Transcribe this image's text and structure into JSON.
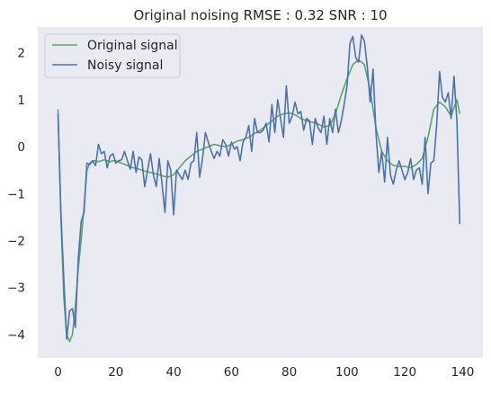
{
  "chart_data": {
    "type": "line",
    "title": "Original noising RMSE : 0.32 SNR : 10",
    "xlabel": "",
    "ylabel": "",
    "xlim": [
      -7,
      147
    ],
    "ylim": [
      -4.5,
      2.55
    ],
    "x_ticks": [
      0,
      20,
      40,
      60,
      80,
      100,
      120,
      140
    ],
    "y_ticks": [
      -4,
      -3,
      -2,
      -1,
      0,
      1,
      2
    ],
    "grid": false,
    "background": "#eaeaf2",
    "legend_position": "top-left",
    "series": [
      {
        "name": "Original signal",
        "color": "#55a868",
        "x": [
          0,
          1,
          2,
          3,
          4,
          5,
          6,
          7,
          8,
          9,
          10,
          11,
          12,
          13,
          14,
          15,
          16,
          17,
          18,
          19,
          20,
          22,
          24,
          26,
          28,
          30,
          32,
          34,
          36,
          38,
          40,
          42,
          44,
          46,
          48,
          50,
          52,
          54,
          56,
          58,
          60,
          62,
          64,
          66,
          68,
          70,
          72,
          74,
          76,
          78,
          80,
          82,
          84,
          86,
          88,
          90,
          92,
          94,
          96,
          98,
          100,
          102,
          104,
          106,
          108,
          110,
          112,
          114,
          116,
          118,
          120,
          122,
          124,
          126,
          128,
          130,
          132,
          134,
          136,
          138,
          139
        ],
        "values": [
          0.8,
          -1.5,
          -3.2,
          -4.0,
          -4.15,
          -4.0,
          -3.4,
          -2.6,
          -2.0,
          -1.3,
          -0.5,
          -0.35,
          -0.3,
          -0.3,
          -0.32,
          -0.3,
          -0.28,
          -0.3,
          -0.32,
          -0.3,
          -0.3,
          -0.35,
          -0.4,
          -0.45,
          -0.48,
          -0.52,
          -0.55,
          -0.58,
          -0.62,
          -0.65,
          -0.6,
          -0.45,
          -0.3,
          -0.2,
          -0.1,
          -0.05,
          0.0,
          0.05,
          0.02,
          0.0,
          0.05,
          0.12,
          0.15,
          0.2,
          0.28,
          0.35,
          0.45,
          0.55,
          0.65,
          0.7,
          0.72,
          0.68,
          0.6,
          0.55,
          0.52,
          0.48,
          0.42,
          0.45,
          0.7,
          1.1,
          1.45,
          1.75,
          1.85,
          1.75,
          1.2,
          0.4,
          -0.1,
          -0.3,
          -0.4,
          -0.42,
          -0.42,
          -0.45,
          -0.38,
          -0.25,
          0.2,
          0.8,
          0.95,
          0.85,
          0.65,
          1.0,
          0.7
        ]
      },
      {
        "name": "Noisy signal",
        "color": "#4c72b0",
        "x": [
          0,
          1,
          2,
          3,
          4,
          5,
          6,
          7,
          8,
          9,
          10,
          11,
          12,
          13,
          14,
          15,
          16,
          17,
          18,
          19,
          20,
          21,
          22,
          23,
          24,
          25,
          26,
          27,
          28,
          29,
          30,
          31,
          32,
          33,
          34,
          35,
          36,
          37,
          38,
          39,
          40,
          41,
          42,
          43,
          44,
          45,
          46,
          47,
          48,
          49,
          50,
          51,
          52,
          53,
          54,
          55,
          56,
          57,
          58,
          59,
          60,
          61,
          62,
          63,
          64,
          65,
          66,
          67,
          68,
          69,
          70,
          71,
          72,
          73,
          74,
          75,
          76,
          77,
          78,
          79,
          80,
          81,
          82,
          83,
          84,
          85,
          86,
          87,
          88,
          89,
          90,
          91,
          92,
          93,
          94,
          95,
          96,
          97,
          98,
          99,
          100,
          101,
          102,
          103,
          104,
          105,
          106,
          107,
          108,
          109,
          110,
          111,
          112,
          113,
          114,
          115,
          116,
          117,
          118,
          119,
          120,
          121,
          122,
          123,
          124,
          125,
          126,
          127,
          128,
          129,
          130,
          131,
          132,
          133,
          134,
          135,
          136,
          137,
          138,
          139
        ],
        "values": [
          0.7,
          -1.4,
          -2.8,
          -4.1,
          -3.5,
          -3.45,
          -3.85,
          -2.4,
          -1.6,
          -1.4,
          -0.35,
          -0.38,
          -0.3,
          -0.4,
          0.05,
          -0.15,
          -0.1,
          -0.45,
          -0.2,
          -0.15,
          -0.35,
          -0.3,
          -0.28,
          -0.1,
          -0.3,
          -0.48,
          -0.1,
          -0.55,
          -0.22,
          -0.28,
          -0.85,
          -0.5,
          -0.15,
          -0.6,
          -0.85,
          -0.25,
          -0.8,
          -1.4,
          -0.3,
          -0.5,
          -1.45,
          -0.5,
          -0.6,
          -0.7,
          -0.5,
          -0.7,
          -0.35,
          -0.3,
          0.3,
          -0.65,
          -0.25,
          0.3,
          0.1,
          -0.1,
          -0.25,
          -0.1,
          -0.2,
          0.15,
          0.05,
          -0.2,
          0.1,
          -0.05,
          0.0,
          -0.3,
          0.1,
          0.2,
          0.45,
          -0.1,
          0.6,
          0.3,
          0.3,
          0.35,
          0.5,
          0.1,
          0.9,
          0.3,
          1.0,
          0.6,
          0.2,
          1.3,
          0.5,
          0.65,
          0.95,
          0.7,
          0.75,
          0.35,
          0.6,
          0.55,
          0.05,
          0.6,
          0.4,
          0.3,
          0.65,
          0.05,
          0.6,
          0.3,
          0.8,
          0.3,
          0.55,
          0.9,
          1.3,
          2.2,
          2.35,
          1.9,
          1.8,
          2.38,
          2.25,
          1.7,
          0.95,
          1.65,
          0.3,
          -0.55,
          -0.1,
          -0.75,
          0.2,
          -0.6,
          -0.8,
          -0.5,
          -0.3,
          -0.5,
          -0.7,
          -0.55,
          -0.25,
          -0.7,
          -0.5,
          -0.45,
          -0.8,
          0.2,
          -1.0,
          -0.35,
          -0.3,
          0.45,
          1.6,
          1.05,
          0.95,
          1.15,
          0.6,
          1.5,
          0.55,
          -1.65
        ]
      }
    ]
  }
}
